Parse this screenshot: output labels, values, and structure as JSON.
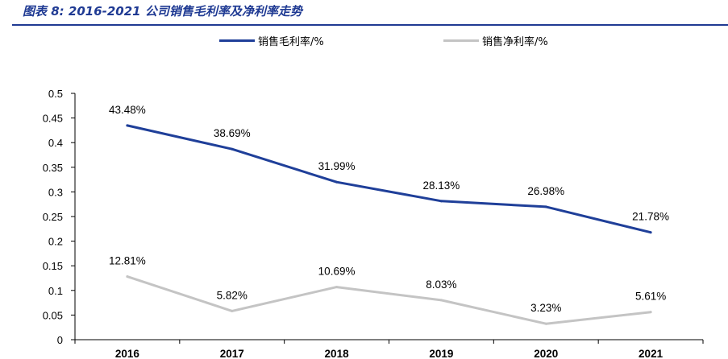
{
  "header": {
    "figure_title": "图表 8:  2016-2021 公司销售毛利率及净利率走势"
  },
  "colors": {
    "gross": "#1f3f99",
    "net": "#c4c4c4",
    "title": "#1f3a93"
  },
  "chart_data": {
    "type": "line",
    "categories": [
      "2016",
      "2017",
      "2018",
      "2019",
      "2020",
      "2021"
    ],
    "series": [
      {
        "name": "销售毛利率/%",
        "values": [
          0.4348,
          0.3869,
          0.3199,
          0.2813,
          0.2698,
          0.2178
        ],
        "labels": [
          "43.48%",
          "38.69%",
          "31.99%",
          "28.13%",
          "26.98%",
          "21.78%"
        ]
      },
      {
        "name": "销售净利率/%",
        "values": [
          0.1281,
          0.0582,
          0.1069,
          0.0803,
          0.0323,
          0.0561
        ],
        "labels": [
          "12.81%",
          "5.82%",
          "10.69%",
          "8.03%",
          "3.23%",
          "5.61%"
        ]
      }
    ],
    "yticks": [
      "0",
      "0.05",
      "0.1",
      "0.15",
      "0.2",
      "0.25",
      "0.3",
      "0.35",
      "0.4",
      "0.45",
      "0.5"
    ],
    "ylim": [
      0,
      0.5
    ],
    "grid": false,
    "legend_position": "top"
  }
}
